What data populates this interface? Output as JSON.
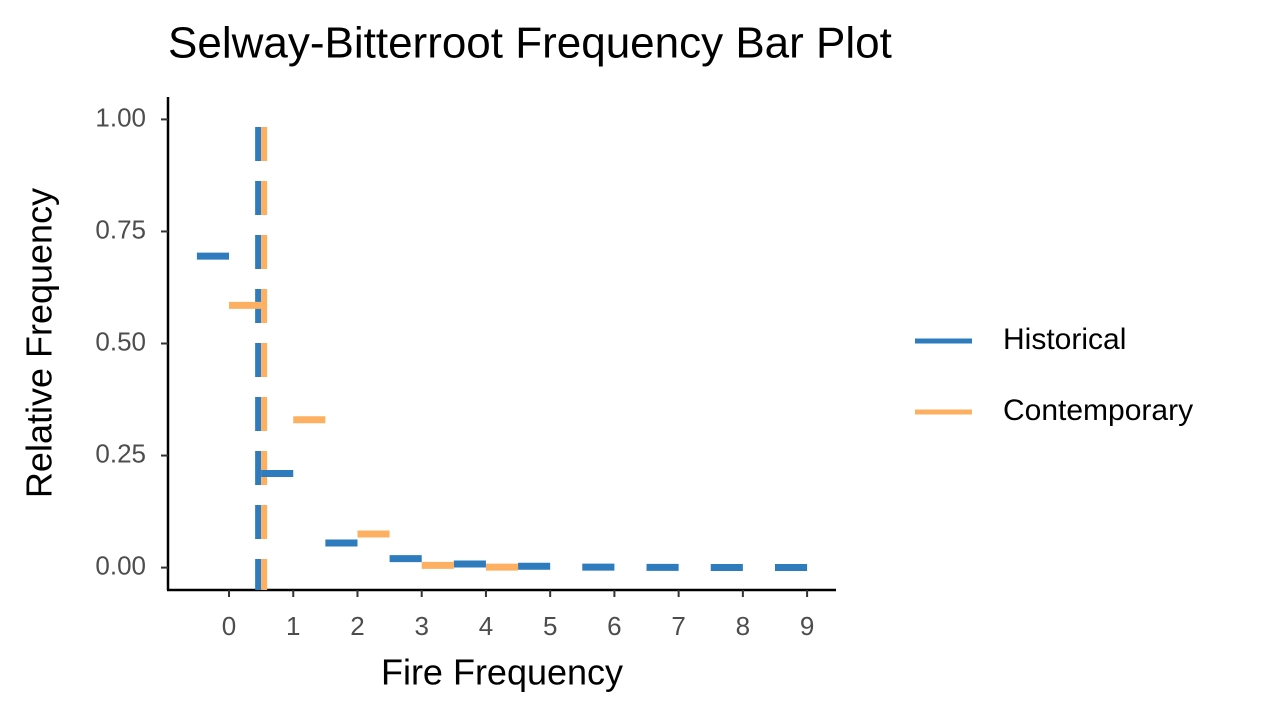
{
  "chart_data": {
    "type": "step-bar",
    "title": "Selway-Bitterroot Frequency Bar Plot",
    "x_label": "Fire Frequency",
    "y_label": "Relative Frequency",
    "x": [
      0,
      1,
      2,
      3,
      4,
      5,
      6,
      7,
      8,
      9
    ],
    "series": [
      {
        "name": "Historical",
        "color": "#2e7bbd",
        "values": [
          0.695,
          0.21,
          0.055,
          0.02,
          0.008,
          0.003,
          0.001,
          0.0005,
          0.0002,
          0.0001
        ]
      },
      {
        "name": "Contemporary",
        "color": "#fdb062",
        "values": [
          0.585,
          0.33,
          0.075,
          0.005,
          0.001,
          null,
          null,
          null,
          null,
          null
        ]
      }
    ],
    "vline": 0.5,
    "xlim": [
      -0.95,
      9.45
    ],
    "ylim": [
      -0.05,
      1.05
    ],
    "xticks": [
      0,
      1,
      2,
      3,
      4,
      5,
      6,
      7,
      8,
      9
    ],
    "yticks": [
      {
        "value": 0,
        "label": "0.00"
      },
      {
        "value": 0.25,
        "label": "0.25"
      },
      {
        "value": 0.5,
        "label": "0.50"
      },
      {
        "value": 0.75,
        "label": "0.75"
      },
      {
        "value": 1,
        "label": "1.00"
      }
    ],
    "grid": false,
    "legend": "right"
  }
}
